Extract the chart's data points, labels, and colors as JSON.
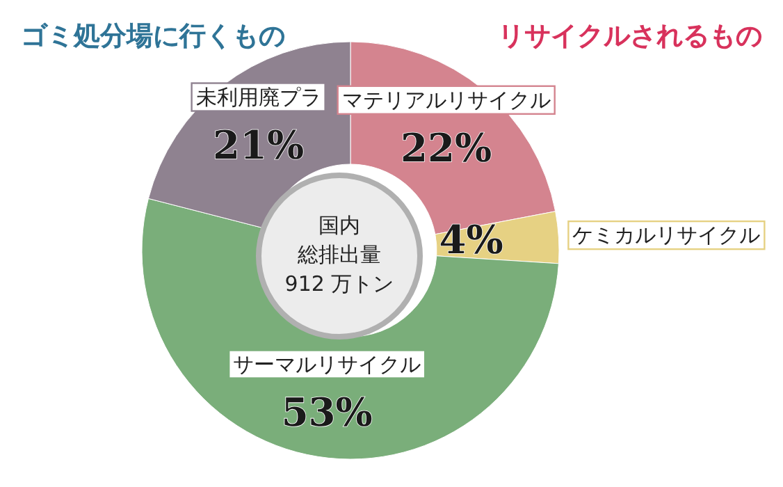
{
  "chart_data": {
    "type": "donut",
    "title": "ゴミ処分場に行くもの",
    "subtitle": "リサイクルされるもの",
    "categories": [
      "マテリアルリサイクル",
      "ケミカルリサイクル",
      "サーマルリサイクル",
      "未利用廃プラ"
    ],
    "values": [
      22,
      4,
      53,
      21
    ],
    "colors": [
      "#d4848f",
      "#e6d183",
      "#7aae7a",
      "#8f8290"
    ],
    "value_labels": [
      "22%",
      "4%",
      "53%",
      "21%"
    ],
    "annotations": [
      "国内",
      "総排出量",
      "912 万トン"
    ]
  }
}
